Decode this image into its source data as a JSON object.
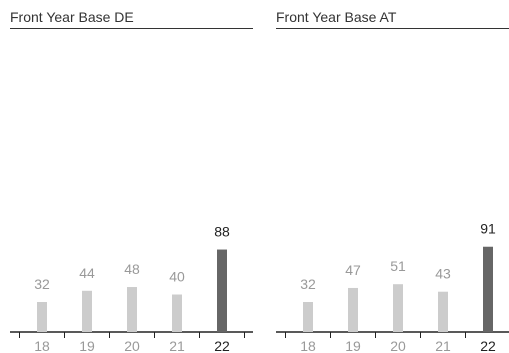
{
  "chart_data": [
    {
      "type": "bar",
      "title": "Front Year Base DE",
      "categories": [
        "18",
        "19",
        "20",
        "21",
        "22"
      ],
      "values": [
        32,
        44,
        48,
        40,
        88
      ],
      "highlight_index": 4,
      "ylim": [
        0,
        100
      ],
      "grid": false,
      "colors": {
        "bar": "#cccccc",
        "highlight": "#666666",
        "label": "#999999",
        "highlight_label": "#222222",
        "axis": "#222222"
      }
    },
    {
      "type": "bar",
      "title": "Front Year Base AT",
      "categories": [
        "18",
        "19",
        "20",
        "21",
        "22"
      ],
      "values": [
        32,
        47,
        51,
        43,
        91
      ],
      "highlight_index": 4,
      "ylim": [
        0,
        100
      ],
      "grid": false,
      "colors": {
        "bar": "#cccccc",
        "highlight": "#666666",
        "label": "#999999",
        "highlight_label": "#222222",
        "axis": "#222222"
      }
    }
  ]
}
